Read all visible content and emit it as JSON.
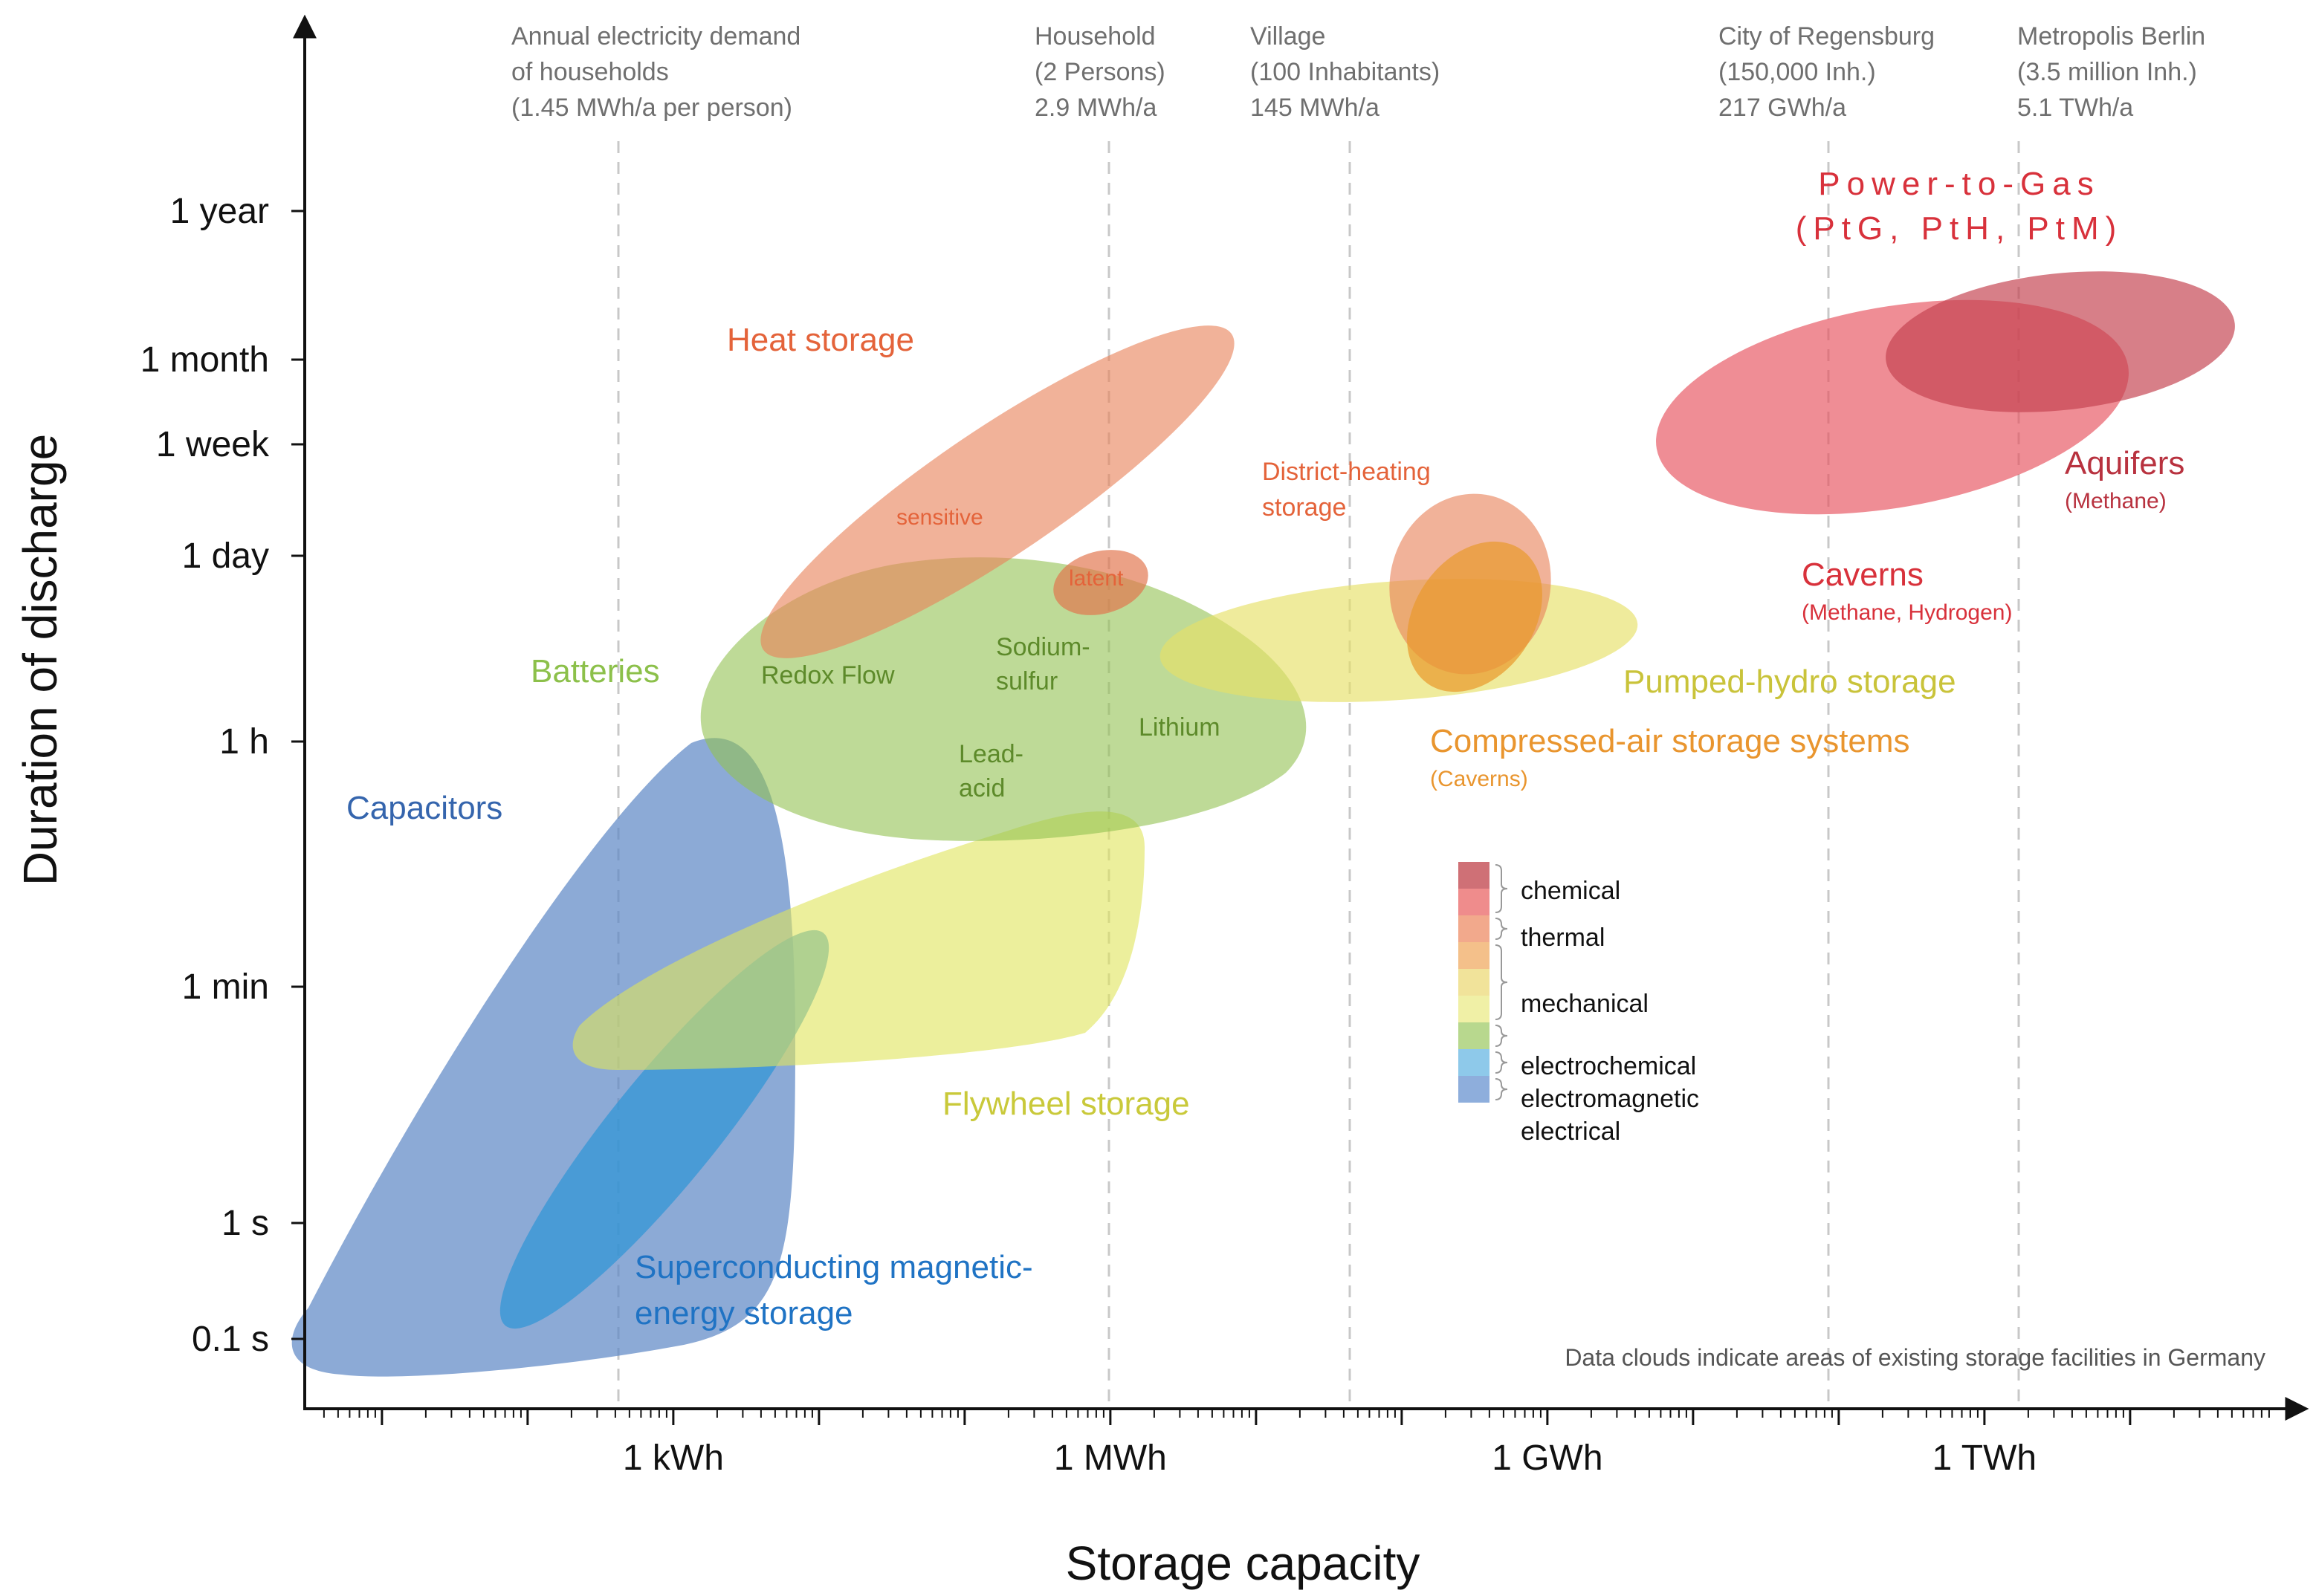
{
  "chart_data": {
    "type": "scatter",
    "title": "",
    "xlabel": "Storage capacity",
    "ylabel": "Duration of discharge",
    "x_scale": "log",
    "y_scale": "categorical-log",
    "x_ticks": [
      "1 kWh",
      "1 MWh",
      "1 GWh",
      "1 TWh"
    ],
    "y_ticks": [
      "1 year",
      "1 month",
      "1 week",
      "1 day",
      "1 h",
      "1 min",
      "1 s",
      "0.1 s"
    ],
    "reference_lines": [
      {
        "lines": [
          "Annual electricity demand",
          "of households",
          "(1.45 MWh/a per person)"
        ]
      },
      {
        "lines": [
          "Household",
          "(2 Persons)",
          "2.9 MWh/a"
        ]
      },
      {
        "lines": [
          "Village",
          "(100 Inhabitants)",
          "145 MWh/a"
        ]
      },
      {
        "lines": [
          "City of Regensburg",
          "(150,000 Inh.)",
          "217 GWh/a"
        ]
      },
      {
        "lines": [
          "Metropolis Berlin",
          "(3.5 million Inh.)",
          "5.1 TWh/a"
        ]
      }
    ],
    "regions": [
      {
        "name": "Capacitors",
        "category": "electrical",
        "color": "#5b86c4"
      },
      {
        "name": "Superconducting magnetic-energy storage",
        "category": "electromagnetic",
        "color": "#2f95d6"
      },
      {
        "name": "Flywheel storage",
        "category": "mechanical",
        "color": "#dfe45a"
      },
      {
        "name": "Batteries",
        "category": "electrochemical",
        "color": "#93c252"
      },
      {
        "name": "Heat storage",
        "category": "thermal",
        "color": "#e9825a"
      },
      {
        "name": "latent",
        "category": "thermal",
        "color": "#e2744d"
      },
      {
        "name": "Pumped-hydro storage",
        "category": "mechanical",
        "color": "#e6e067"
      },
      {
        "name": "District-heating storage",
        "category": "thermal",
        "color": "#e9825a"
      },
      {
        "name": "Compressed-air storage systems",
        "category": "mechanical",
        "color": "#e99a2e"
      },
      {
        "name": "Caverns",
        "category": "chemical",
        "color": "#e6505c"
      },
      {
        "name": "Aquifers",
        "category": "chemical",
        "color": "#c44250"
      }
    ],
    "labels": {
      "power_to_gas_1": "Power-to-Gas",
      "power_to_gas_2": "(PtG, PtH, PtM)",
      "heat_storage": "Heat storage",
      "sensitive": "sensitive",
      "latent": "latent",
      "batteries": "Batteries",
      "redox_flow": "Redox Flow",
      "sodium_1": "Sodium-",
      "sodium_2": "sulfur",
      "lithium": "Lithium",
      "lead_1": "Lead-",
      "lead_2": "acid",
      "capacitors": "Capacitors",
      "flywheel": "Flywheel storage",
      "smes_1": "Superconducting magnetic-",
      "smes_2": "energy storage",
      "district_1": "District-heating",
      "district_2": "storage",
      "pumped_hydro": "Pumped-hydro storage",
      "caes": "Compressed-air storage systems",
      "caes_sub": "(Caverns)",
      "caverns": "Caverns",
      "caverns_sub": "(Methane, Hydrogen)",
      "aquifers": "Aquifers",
      "aquifers_sub": "(Methane)"
    },
    "legend": [
      {
        "label": "chemical",
        "colors": [
          "#cf7076",
          "#ef8c8c"
        ]
      },
      {
        "label": "thermal",
        "colors": [
          "#f2a98c"
        ]
      },
      {
        "label": "mechanical",
        "colors": [
          "#f4c08a",
          "#f1e39a",
          "#f0f0a6"
        ]
      },
      {
        "label": "electrochemical",
        "colors": [
          "#b8d88e"
        ]
      },
      {
        "label": "electromagnetic",
        "colors": [
          "#8ec9ea"
        ]
      },
      {
        "label": "electrical",
        "colors": [
          "#8eaedc"
        ]
      }
    ],
    "legend_position": "center-right",
    "note": "Data clouds indicate areas of existing storage facilities in Germany"
  }
}
